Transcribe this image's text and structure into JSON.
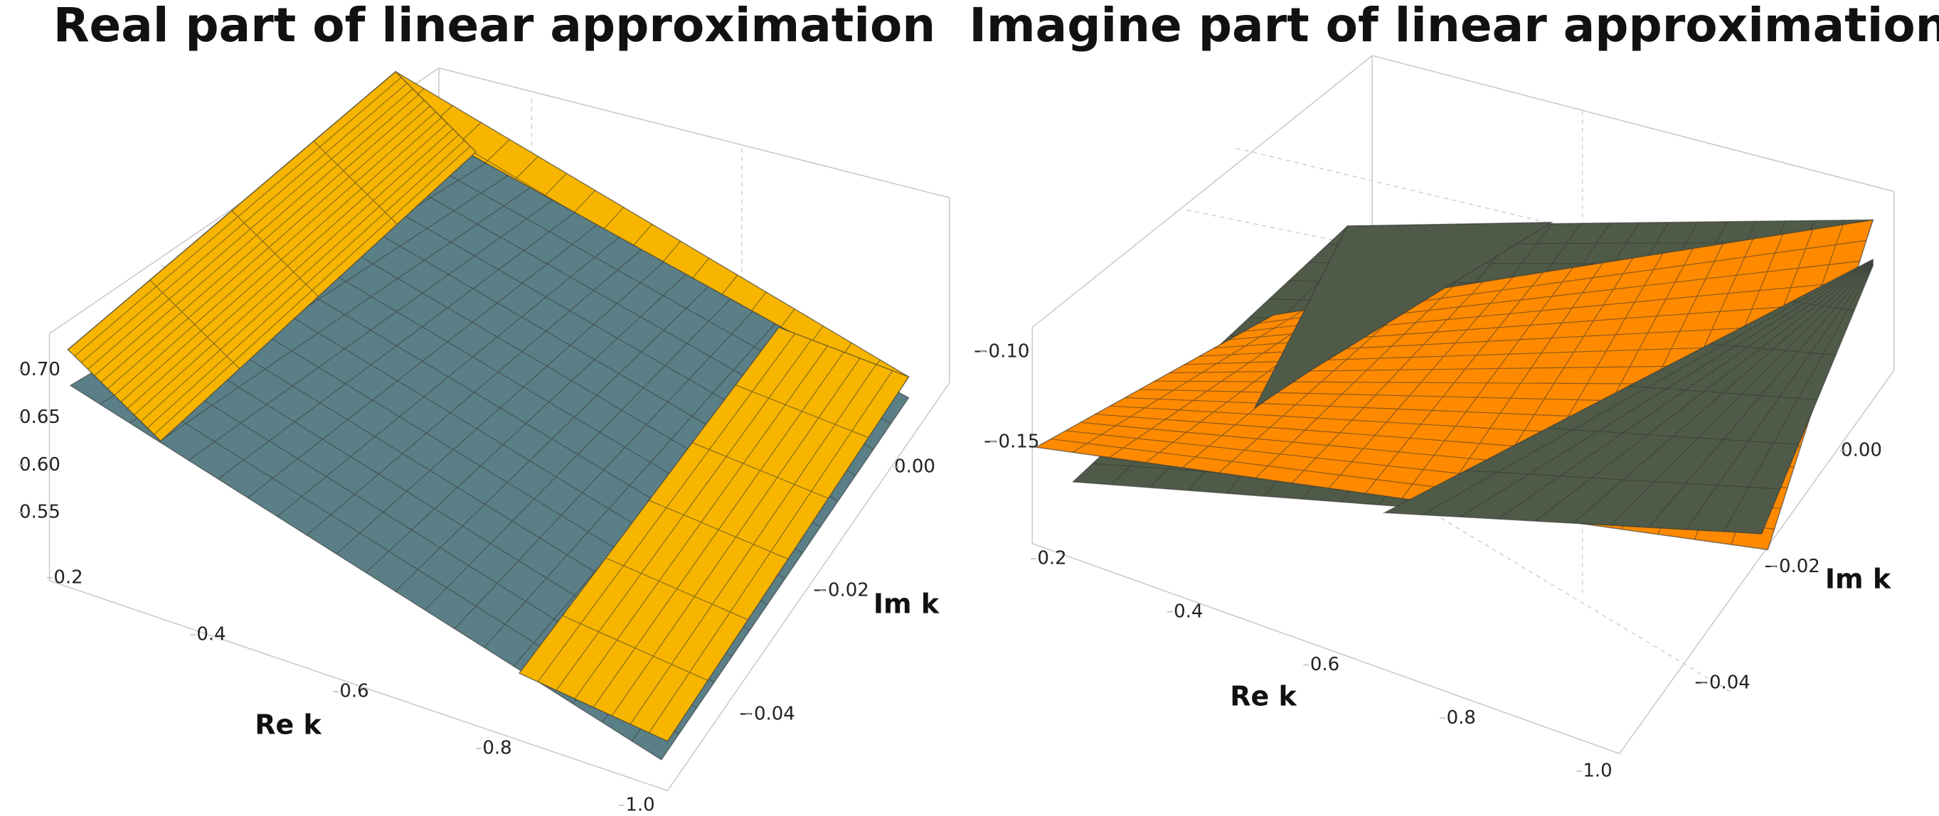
{
  "chart_data": [
    {
      "type": "surface",
      "title": "Real part of linear approximation",
      "xlabel": "Re k",
      "ylabel": "Im k",
      "colors": [
        "#f7b500",
        "#5b7f86"
      ],
      "xlim": [
        0.2,
        1.0
      ],
      "xticks": [
        0.2,
        0.4,
        0.6,
        0.8,
        {
          "value": 1,
          "label": "1.0"
        }
      ],
      "ylim": [
        -0.05,
        0.01
      ],
      "yticks": [
        {
          "value": -0.04,
          "label": "−0.04"
        },
        {
          "value": -0.02,
          "label": "−0.02"
        },
        {
          "value": 0,
          "label": "0.00"
        }
      ],
      "zlim": [
        0.5,
        0.72
      ],
      "zticks": [
        0.55,
        {
          "value": 0.6,
          "label": "0.60"
        },
        0.65,
        {
          "value": 0.7,
          "label": "0.70"
        }
      ]
    },
    {
      "type": "surface",
      "title": "Imagine part of linear approximation",
      "xlabel": "Re k",
      "ylabel": "Im k",
      "colors": [
        "#ff8a00",
        "#4f5b48"
      ],
      "xlim": [
        0.2,
        1.0
      ],
      "xticks": [
        0.2,
        0.4,
        0.6,
        0.8,
        {
          "value": 1,
          "label": "1.0"
        }
      ],
      "ylim": [
        -0.05,
        0.01
      ],
      "yticks": [
        {
          "value": -0.04,
          "label": "−0.04"
        },
        {
          "value": -0.02,
          "label": "−0.02"
        },
        {
          "value": 0,
          "label": "0.00"
        }
      ],
      "zlim": [
        -0.18,
        -0.08
      ],
      "zticks": [
        {
          "value": -0.15,
          "label": "−0.15"
        },
        {
          "value": -0.1,
          "label": "−0.10"
        }
      ]
    }
  ]
}
